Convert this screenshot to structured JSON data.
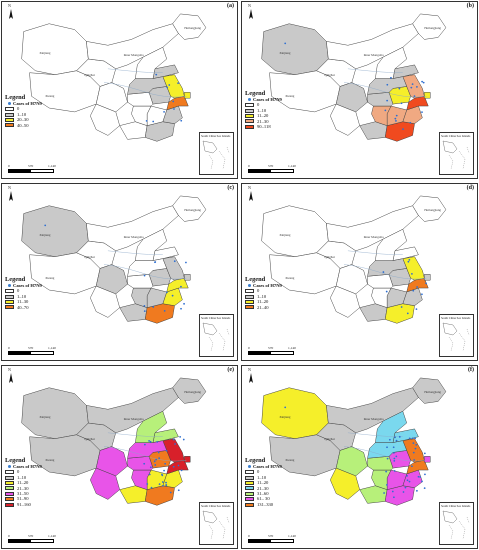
{
  "legend_title": "Legend",
  "cases_label": "Cases of H7N9",
  "north_label": "N",
  "inset_label": "South China Sea Islands",
  "scale_labels": [
    "0",
    "570",
    "1,140"
  ],
  "province_labels": {
    "Xinjiang": "Xinjiang",
    "Inner Mongolia": "Inner Mongolia",
    "Qinghai": "Qinghai",
    "Xizang": "Xizang",
    "Heilongjiang": "Heilongjiang"
  },
  "panels": [
    {
      "id": "a",
      "label": "(a)",
      "classes": [
        {
          "label": "0",
          "color": "#ffffff"
        },
        {
          "label": "1–10",
          "color": "#c9c9c9"
        },
        {
          "label": "20–30",
          "color": "#f5ef2a"
        },
        {
          "label": "40–50",
          "color": "#f07a1f"
        }
      ],
      "fills": {
        "Xinjiang": "#ffffff",
        "Inner Mongolia": "#ffffff",
        "Qinghai": "#ffffff",
        "Xizang": "#ffffff",
        "Heilongjiang": "#ffffff",
        "Sichuan": "#ffffff",
        "Yunnan": "#ffffff",
        "Guangdong": "#c9c9c9",
        "Fujian": "#c9c9c9",
        "Zhejiang": "#f07a1f",
        "Jiangsu": "#f5ef2a",
        "Shanghai": "#f5ef2a",
        "Anhui": "#c9c9c9",
        "Hunan": "#ffffff",
        "Jiangxi": "#ffffff",
        "Shandong": "#c9c9c9",
        "Henan": "#c9c9c9",
        "Hebei": "#ffffff",
        "Guangxi": "#ffffff",
        "Hubei": "#ffffff"
      }
    },
    {
      "id": "b",
      "label": "(b)",
      "classes": [
        {
          "label": "0",
          "color": "#ffffff"
        },
        {
          "label": "1–10",
          "color": "#c9c9c9"
        },
        {
          "label": "11–20",
          "color": "#f5ef2a"
        },
        {
          "label": "21–30",
          "color": "#f0a982"
        },
        {
          "label": "90–118",
          "color": "#f04a1f"
        }
      ],
      "fills": {
        "Xinjiang": "#c9c9c9",
        "Inner Mongolia": "#ffffff",
        "Qinghai": "#ffffff",
        "Xizang": "#ffffff",
        "Heilongjiang": "#ffffff",
        "Sichuan": "#c9c9c9",
        "Yunnan": "#ffffff",
        "Guangdong": "#f04a1f",
        "Fujian": "#f0a982",
        "Zhejiang": "#f04a1f",
        "Jiangsu": "#f0a982",
        "Shanghai": "#f5ef2a",
        "Anhui": "#f5ef2a",
        "Hunan": "#f0a982",
        "Jiangxi": "#f0a982",
        "Shandong": "#c9c9c9",
        "Henan": "#c9c9c9",
        "Hebei": "#ffffff",
        "Guangxi": "#c9c9c9",
        "Hubei": "#c9c9c9"
      }
    },
    {
      "id": "c",
      "label": "(c)",
      "classes": [
        {
          "label": "0",
          "color": "#ffffff"
        },
        {
          "label": "1–10",
          "color": "#c9c9c9"
        },
        {
          "label": "11–30",
          "color": "#f5ef2a"
        },
        {
          "label": "40–70",
          "color": "#f07a1f"
        }
      ],
      "fills": {
        "Xinjiang": "#c9c9c9",
        "Inner Mongolia": "#ffffff",
        "Qinghai": "#ffffff",
        "Xizang": "#ffffff",
        "Heilongjiang": "#ffffff",
        "Sichuan": "#c9c9c9",
        "Yunnan": "#ffffff",
        "Guangdong": "#f07a1f",
        "Fujian": "#f5ef2a",
        "Zhejiang": "#f5ef2a",
        "Jiangsu": "#c9c9c9",
        "Shanghai": "#c9c9c9",
        "Anhui": "#c9c9c9",
        "Hunan": "#c9c9c9",
        "Jiangxi": "#c9c9c9",
        "Shandong": "#ffffff",
        "Henan": "#ffffff",
        "Hebei": "#ffffff",
        "Guangxi": "#c9c9c9",
        "Hubei": "#ffffff"
      }
    },
    {
      "id": "d",
      "label": "(d)",
      "classes": [
        {
          "label": "0",
          "color": "#ffffff"
        },
        {
          "label": "1–10",
          "color": "#c9c9c9"
        },
        {
          "label": "11–20",
          "color": "#f5ef2a"
        },
        {
          "label": "21–40",
          "color": "#f07a1f"
        }
      ],
      "fills": {
        "Xinjiang": "#ffffff",
        "Inner Mongolia": "#ffffff",
        "Qinghai": "#ffffff",
        "Xizang": "#ffffff",
        "Heilongjiang": "#ffffff",
        "Sichuan": "#ffffff",
        "Yunnan": "#ffffff",
        "Guangdong": "#f5ef2a",
        "Fujian": "#c9c9c9",
        "Zhejiang": "#f07a1f",
        "Jiangsu": "#f5ef2a",
        "Shanghai": "#c9c9c9",
        "Anhui": "#c9c9c9",
        "Hunan": "#ffffff",
        "Jiangxi": "#c9c9c9",
        "Shandong": "#ffffff",
        "Henan": "#c9c9c9",
        "Hebei": "#ffffff",
        "Guangxi": "#c9c9c9",
        "Hubei": "#ffffff"
      }
    },
    {
      "id": "e",
      "label": "(e)",
      "classes": [
        {
          "label": "0",
          "color": "#ffffff"
        },
        {
          "label": "1–10",
          "color": "#c9c9c9"
        },
        {
          "label": "11–20",
          "color": "#f5ef2a"
        },
        {
          "label": "21–30",
          "color": "#b7f07a"
        },
        {
          "label": "31–50",
          "color": "#e854e8"
        },
        {
          "label": "51–90",
          "color": "#f07a1f"
        },
        {
          "label": "91–160",
          "color": "#d8202a"
        }
      ],
      "fills": {
        "Xinjiang": "#c9c9c9",
        "Inner Mongolia": "#c9c9c9",
        "Qinghai": "#c9c9c9",
        "Xizang": "#c9c9c9",
        "Heilongjiang": "#c9c9c9",
        "Sichuan": "#e854e8",
        "Yunnan": "#e854e8",
        "Guangdong": "#f07a1f",
        "Fujian": "#f5ef2a",
        "Zhejiang": "#d8202a",
        "Jiangsu": "#d8202a",
        "Shanghai": "#d8202a",
        "Anhui": "#f07a1f",
        "Hunan": "#e854e8",
        "Jiangxi": "#f5ef2a",
        "Shandong": "#b7f07a",
        "Henan": "#e854e8",
        "Hebei": "#b7f07a",
        "Guangxi": "#f5ef2a",
        "Hubei": "#e854e8"
      }
    },
    {
      "id": "f",
      "label": "(f)",
      "classes": [
        {
          "label": "0",
          "color": "#ffffff"
        },
        {
          "label": "1–10",
          "color": "#c9c9c9"
        },
        {
          "label": "11–20",
          "color": "#f5ef2a"
        },
        {
          "label": "21–30",
          "color": "#7ad8ee"
        },
        {
          "label": "31–60",
          "color": "#b7f07a"
        },
        {
          "label": "61– 30",
          "color": "#e854e8"
        },
        {
          "label": "131–330",
          "color": "#f07a1f"
        }
      ],
      "fills": {
        "Xinjiang": "#f5ef2a",
        "Inner Mongolia": "#c9c9c9",
        "Qinghai": "#c9c9c9",
        "Xizang": "#c9c9c9",
        "Heilongjiang": "#c9c9c9",
        "Sichuan": "#b7f07a",
        "Yunnan": "#f5ef2a",
        "Guangdong": "#e854e8",
        "Fujian": "#e854e8",
        "Zhejiang": "#f07a1f",
        "Jiangsu": "#f07a1f",
        "Shanghai": "#e854e8",
        "Anhui": "#e854e8",
        "Hunan": "#b7f07a",
        "Jiangxi": "#e854e8",
        "Shandong": "#7ad8ee",
        "Henan": "#7ad8ee",
        "Hebei": "#7ad8ee",
        "Guangxi": "#b7f07a",
        "Hubei": "#b7f07a"
      }
    }
  ]
}
